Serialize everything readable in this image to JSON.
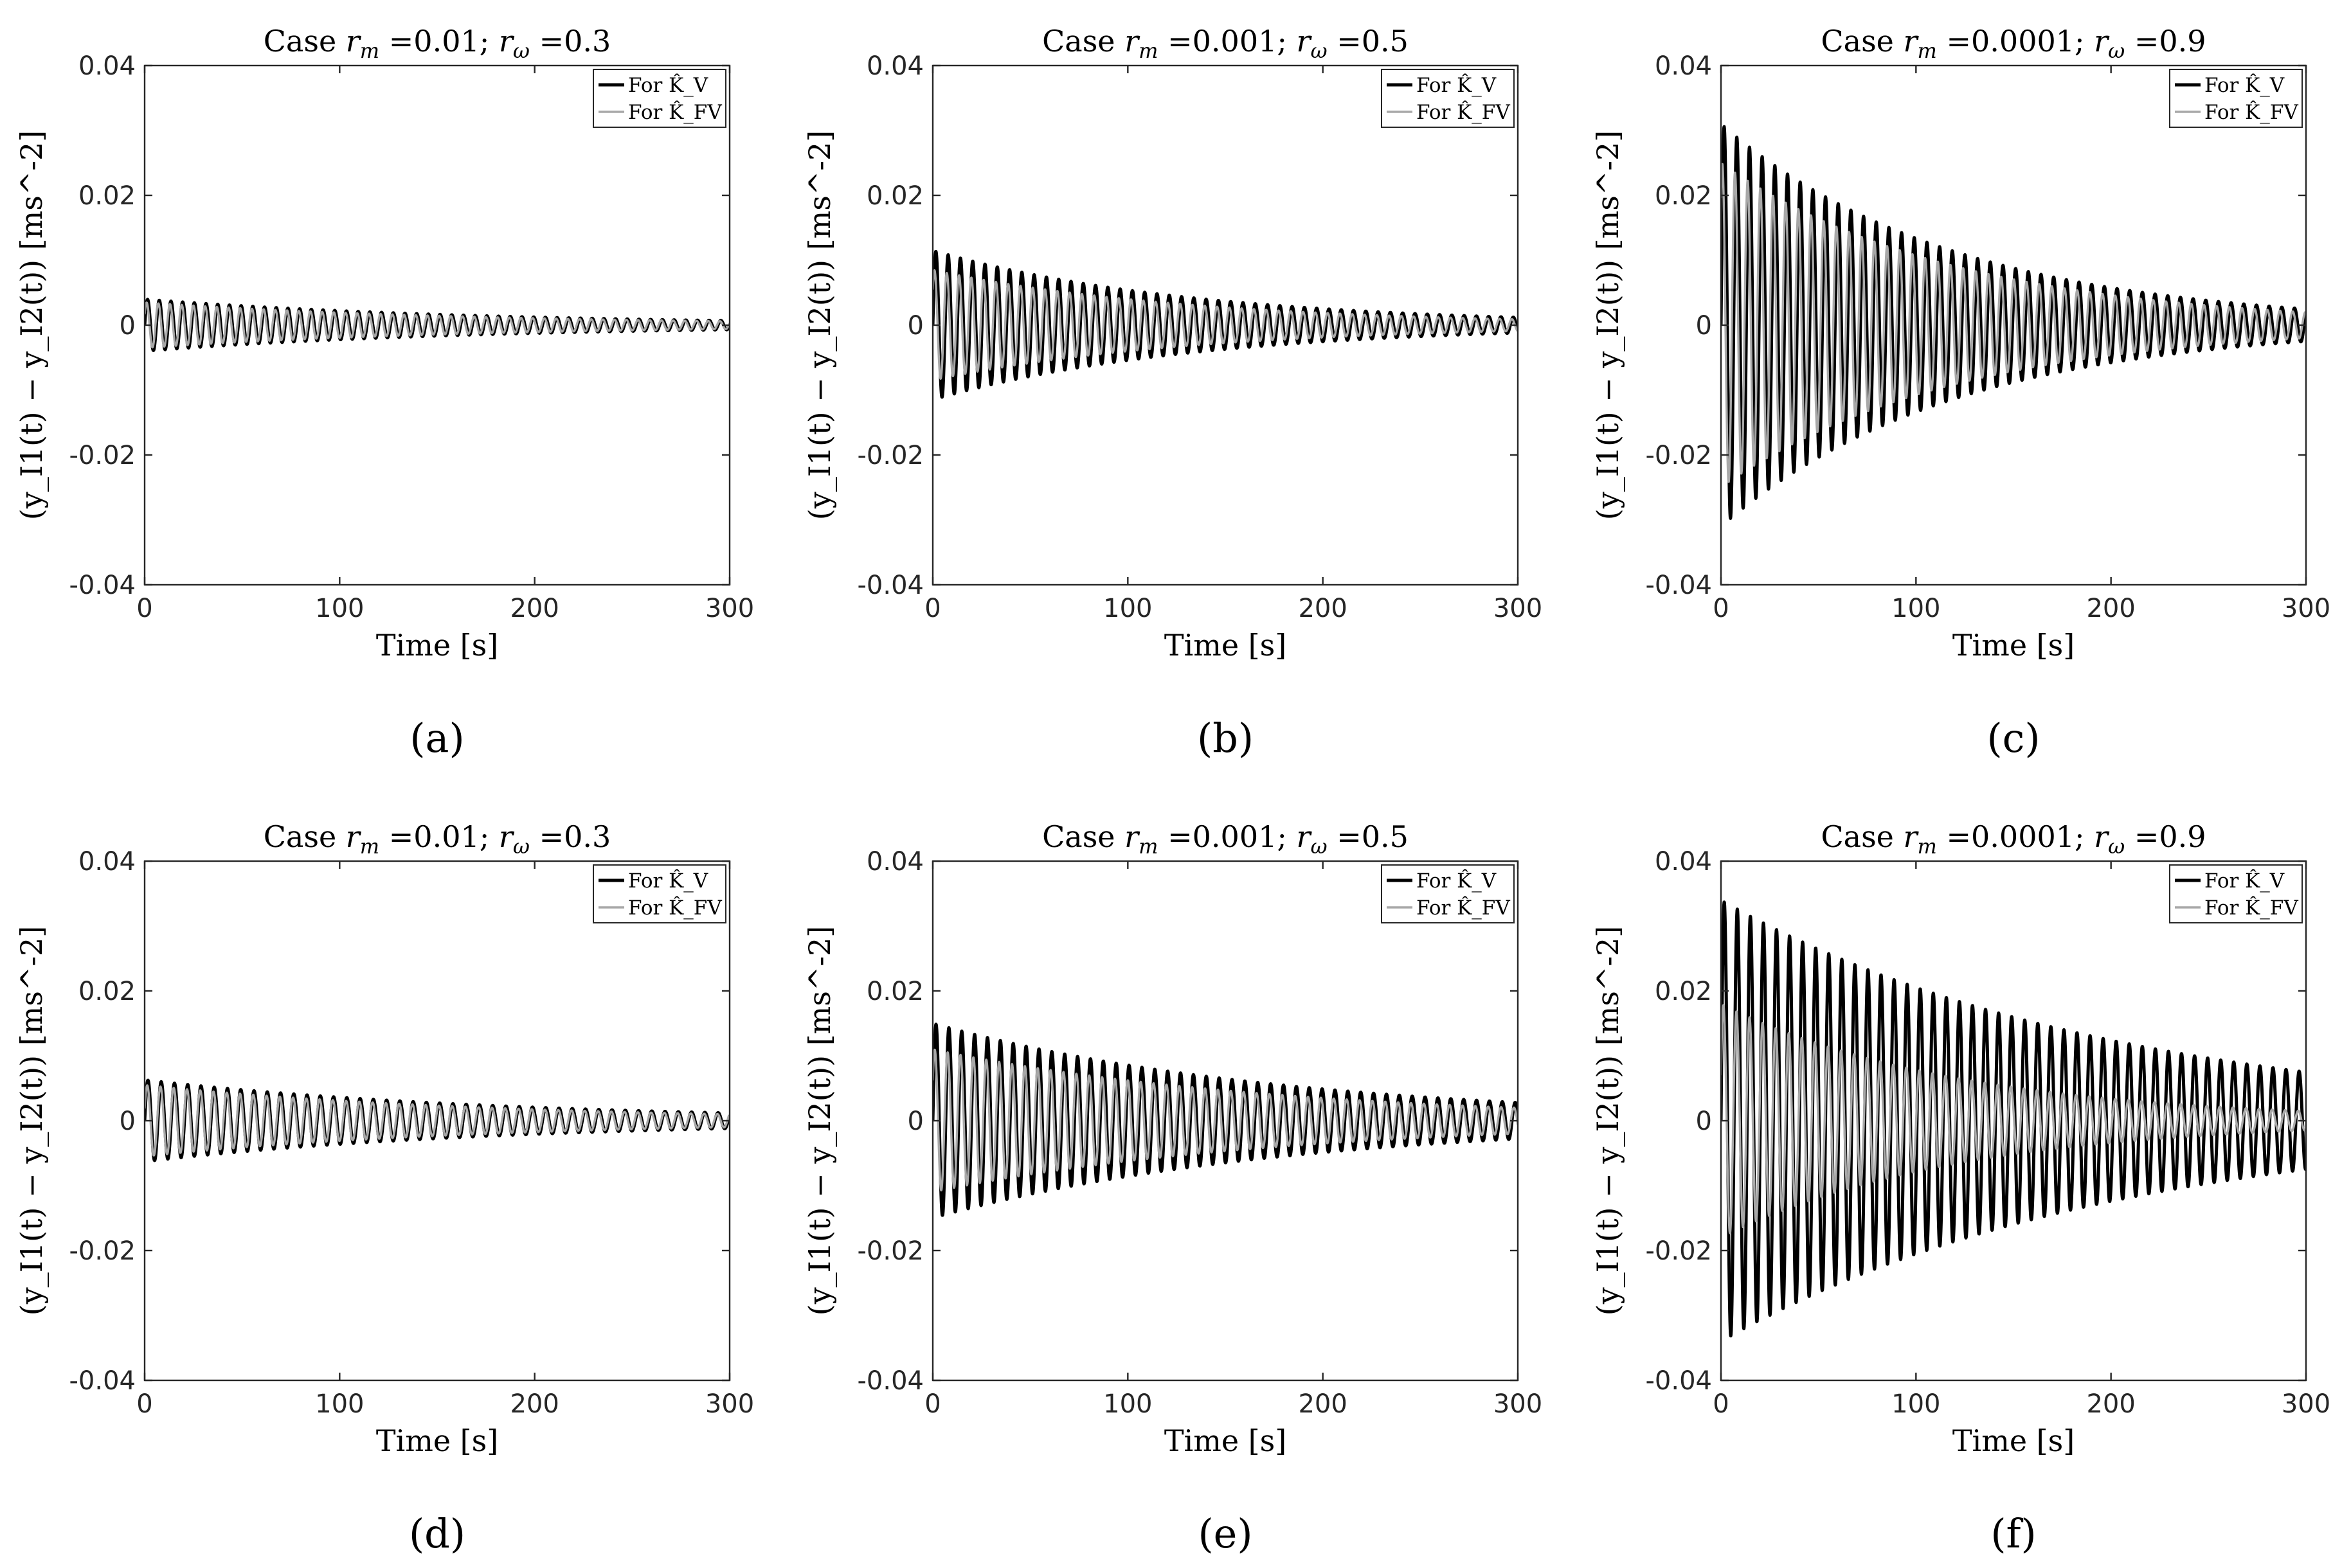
{
  "figure": {
    "legend_entries": [
      "For K̂_V",
      "For K̂_FV"
    ],
    "series_colors": {
      "K_V": "#000000",
      "K_FV": "#a8a8a8"
    }
  },
  "chart_data": [
    {
      "type": "line",
      "panel_label": "(a)",
      "title": "Case r_m =0.01; r_ω =0.3",
      "title_parts": {
        "prefix": "Case ",
        "rm": "r",
        "rm_sub": "m",
        "rm_val": " =0.01; ",
        "rw": "r",
        "rw_sub": "ω",
        "rw_val": " =0.3"
      },
      "xlabel": "Time [s]",
      "ylabel": "(y_I1(t) − y_I2(t)) [ms^-2]",
      "xlim": [
        0,
        300
      ],
      "ylim": [
        -0.04,
        0.04
      ],
      "xticks": [
        0,
        100,
        200,
        300
      ],
      "xtick_labels": [
        "0",
        "100",
        "200",
        "300"
      ],
      "yticks": [
        -0.04,
        -0.02,
        0,
        0.02,
        0.04
      ],
      "ytick_labels": [
        "-0.04",
        "-0.02",
        "0",
        "0.02",
        "0.04"
      ],
      "period": 6.0,
      "series": [
        {
          "name": "For K̂_V",
          "amp_start": 0.004,
          "amp_end": 0.0007,
          "phase": 0.0,
          "color": "#000000"
        },
        {
          "name": "For K̂_FV",
          "amp_start": 0.0035,
          "amp_end": 0.0006,
          "phase": 0.5,
          "color": "#a8a8a8"
        }
      ]
    },
    {
      "type": "line",
      "panel_label": "(b)",
      "title": "Case r_m =0.001; r_ω =0.5",
      "title_parts": {
        "prefix": "Case ",
        "rm": "r",
        "rm_sub": "m",
        "rm_val": " =0.001; ",
        "rw": "r",
        "rw_sub": "ω",
        "rw_val": " =0.5"
      },
      "xlabel": "Time [s]",
      "ylabel": "(y_I1(t) − y_I2(t)) [ms^-2]",
      "xlim": [
        0,
        300
      ],
      "ylim": [
        -0.04,
        0.04
      ],
      "xticks": [
        0,
        100,
        200,
        300
      ],
      "xtick_labels": [
        "0",
        "100",
        "200",
        "300"
      ],
      "yticks": [
        -0.04,
        -0.02,
        0,
        0.02,
        0.04
      ],
      "ytick_labels": [
        "-0.04",
        "-0.02",
        "0",
        "0.02",
        "0.04"
      ],
      "period": 6.3,
      "series": [
        {
          "name": "For K̂_V",
          "amp_start": 0.0115,
          "amp_end": 0.0012,
          "phase": 0.0,
          "color": "#000000"
        },
        {
          "name": "For K̂_FV",
          "amp_start": 0.0085,
          "amp_end": 0.0009,
          "phase": 0.7,
          "color": "#a8a8a8"
        }
      ]
    },
    {
      "type": "line",
      "panel_label": "(c)",
      "title": "Case r_m =0.0001; r_ω =0.9",
      "title_parts": {
        "prefix": "Case ",
        "rm": "r",
        "rm_sub": "m",
        "rm_val": " =0.0001; ",
        "rw": "r",
        "rw_sub": "ω",
        "rw_val": " =0.9"
      },
      "xlabel": "Time [s]",
      "ylabel": "(y_I1(t) − y_I2(t)) [ms^-2]",
      "xlim": [
        0,
        300
      ],
      "ylim": [
        -0.04,
        0.04
      ],
      "xticks": [
        0,
        100,
        200,
        300
      ],
      "xtick_labels": [
        "0",
        "100",
        "200",
        "300"
      ],
      "yticks": [
        -0.04,
        -0.02,
        0,
        0.02,
        0.04
      ],
      "ytick_labels": [
        "-0.04",
        "-0.02",
        "0",
        "0.02",
        "0.04"
      ],
      "period": 6.5,
      "series": [
        {
          "name": "For K̂_V",
          "amp_start": 0.031,
          "amp_end": 0.0025,
          "phase": 0.0,
          "color": "#000000"
        },
        {
          "name": "For K̂_FV",
          "amp_start": 0.025,
          "amp_end": 0.002,
          "phase": 0.9,
          "color": "#a8a8a8"
        }
      ]
    },
    {
      "type": "line",
      "panel_label": "(d)",
      "title": "Case r_m =0.01; r_ω =0.3",
      "title_parts": {
        "prefix": "Case ",
        "rm": "r",
        "rm_sub": "m",
        "rm_val": " =0.01; ",
        "rw": "r",
        "rw_sub": "ω",
        "rw_val": " =0.3"
      },
      "xlabel": "Time [s]",
      "ylabel": "(y_I1(t) − y_I2(t)) [ms^-2]",
      "xlim": [
        0,
        300
      ],
      "ylim": [
        -0.04,
        0.04
      ],
      "xticks": [
        0,
        100,
        200,
        300
      ],
      "xtick_labels": [
        "0",
        "100",
        "200",
        "300"
      ],
      "yticks": [
        -0.04,
        -0.02,
        0,
        0.02,
        0.04
      ],
      "ytick_labels": [
        "-0.04",
        "-0.02",
        "0",
        "0.02",
        "0.04"
      ],
      "period": 6.8,
      "series": [
        {
          "name": "For K̂_V",
          "amp_start": 0.0063,
          "amp_end": 0.0012,
          "phase": 0.0,
          "color": "#000000"
        },
        {
          "name": "For K̂_FV",
          "amp_start": 0.0055,
          "amp_end": 0.001,
          "phase": 0.35,
          "color": "#a8a8a8"
        }
      ]
    },
    {
      "type": "line",
      "panel_label": "(e)",
      "title": "Case r_m =0.001; r_ω =0.5",
      "title_parts": {
        "prefix": "Case ",
        "rm": "r",
        "rm_sub": "m",
        "rm_val": " =0.001; ",
        "rw": "r",
        "rw_sub": "ω",
        "rw_val": " =0.5"
      },
      "xlabel": "Time [s]",
      "ylabel": "(y_I1(t) − y_I2(t)) [ms^-2]",
      "xlim": [
        0,
        300
      ],
      "ylim": [
        -0.04,
        0.04
      ],
      "xticks": [
        0,
        100,
        200,
        300
      ],
      "xtick_labels": [
        "0",
        "100",
        "200",
        "300"
      ],
      "yticks": [
        -0.04,
        -0.02,
        0,
        0.02,
        0.04
      ],
      "ytick_labels": [
        "-0.04",
        "-0.02",
        "0",
        "0.02",
        "0.04"
      ],
      "period": 6.6,
      "series": [
        {
          "name": "For K̂_V",
          "amp_start": 0.015,
          "amp_end": 0.0028,
          "phase": 0.0,
          "color": "#000000"
        },
        {
          "name": "For K̂_FV",
          "amp_start": 0.011,
          "amp_end": 0.002,
          "phase": 0.6,
          "color": "#a8a8a8"
        }
      ]
    },
    {
      "type": "line",
      "panel_label": "(f)",
      "title": "Case r_m =0.0001; r_ω =0.9",
      "title_parts": {
        "prefix": "Case ",
        "rm": "r",
        "rm_sub": "m",
        "rm_val": " =0.0001; ",
        "rw": "r",
        "rw_sub": "ω",
        "rw_val": " =0.9"
      },
      "xlabel": "Time [s]",
      "ylabel": "(y_I1(t) − y_I2(t)) [ms^-2]",
      "xlim": [
        0,
        300
      ],
      "ylim": [
        -0.04,
        0.04
      ],
      "xticks": [
        0,
        100,
        200,
        300
      ],
      "xtick_labels": [
        "0",
        "100",
        "200",
        "300"
      ],
      "yticks": [
        -0.04,
        -0.02,
        0,
        0.02,
        0.04
      ],
      "ytick_labels": [
        "-0.04",
        "-0.02",
        "0",
        "0.02",
        "0.04"
      ],
      "period": 6.7,
      "series": [
        {
          "name": "For K̂_V",
          "amp_start": 0.034,
          "amp_end": 0.0075,
          "phase": 0.0,
          "color": "#000000"
        },
        {
          "name": "For K̂_FV",
          "amp_start": 0.018,
          "amp_end": 0.0015,
          "phase": 0.4,
          "color": "#a8a8a8"
        }
      ]
    }
  ]
}
